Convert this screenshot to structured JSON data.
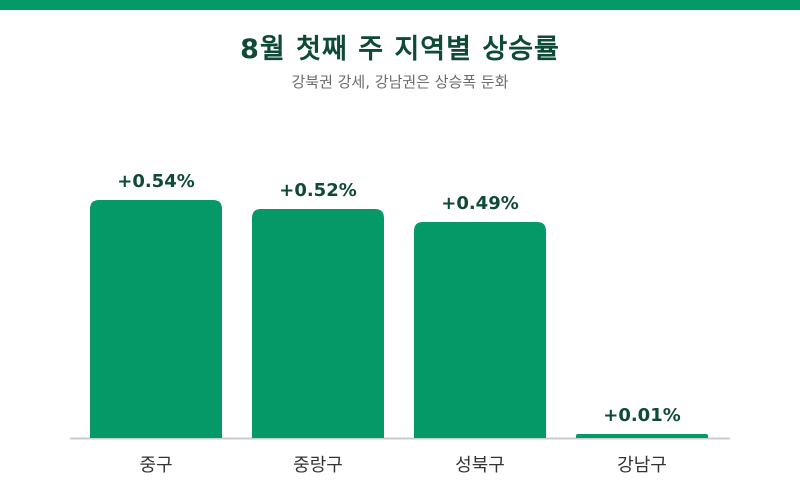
{
  "header": {
    "title": "8월 첫째 주 지역별 상승률",
    "subtitle": "강북권 강세, 강남권은 상승폭 둔화"
  },
  "colors": {
    "accent": "#069968",
    "title": "#0f4a34",
    "baseline": "#c9ccd1"
  },
  "chart_data": {
    "type": "bar",
    "title": "8월 첫째 주 지역별 상승률",
    "subtitle": "강북권 강세, 강남권은 상승폭 둔화",
    "categories": [
      "중구",
      "중랑구",
      "성북구",
      "강남구"
    ],
    "values": [
      0.54,
      0.52,
      0.49,
      0.01
    ],
    "value_labels": [
      "+0.54%",
      "+0.52%",
      "+0.49%",
      "+0.01%"
    ],
    "unit": "%",
    "xlabel": "",
    "ylabel": "",
    "ylim": [
      0,
      0.54
    ],
    "grid": false,
    "legend": "none"
  }
}
